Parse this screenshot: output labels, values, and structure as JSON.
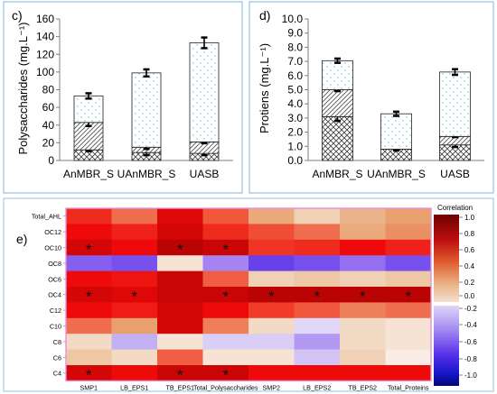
{
  "figure": {
    "colors": {
      "panel_border": "#8fc3df",
      "heatmap_border": "#e88ed8",
      "hatch_color": "#444444",
      "dot_color": "#5bbcd6"
    }
  },
  "chart_data": [
    {
      "panel": "c)",
      "type": "bar",
      "stacked": true,
      "categories": [
        "AnMBR_S",
        "UAnMBR_S",
        "UASB"
      ],
      "ylabel": "Polysaccharides (mg.L⁻¹)",
      "ylim": [
        0,
        160
      ],
      "yticks": [
        "0",
        "20",
        "40",
        "60",
        "80",
        "100",
        "120",
        "140",
        "160"
      ],
      "segment_patterns": [
        "crosshatch",
        "diagonal",
        "dots"
      ],
      "series": [
        {
          "values": [
            12,
            9,
            8
          ],
          "errors": [
            1.5,
            3,
            2
          ]
        },
        {
          "values": [
            31,
            6,
            13
          ],
          "errors": [
            4,
            2,
            1.5
          ]
        },
        {
          "values": [
            30,
            84,
            112
          ],
          "errors": [
            3,
            4,
            6
          ]
        }
      ],
      "totals": [
        73,
        99,
        133
      ]
    },
    {
      "panel": "d)",
      "type": "bar",
      "stacked": true,
      "categories": [
        "AnMBR_S",
        "UAnMBR_S",
        "UASB"
      ],
      "ylabel": "Protiens (mg.L⁻¹)",
      "ylim": [
        0,
        10
      ],
      "yticks": [
        "0.0",
        "1.0",
        "2.0",
        "3.0",
        "4.0",
        "5.0",
        "6.0",
        "7.0",
        "8.0",
        "9.0",
        "10.0"
      ],
      "segment_patterns": [
        "crosshatch",
        "diagonal",
        "dots"
      ],
      "series": [
        {
          "values": [
            3.1,
            0.8,
            1.1
          ],
          "errors": [
            0.3,
            0.1,
            0.15
          ]
        },
        {
          "values": [
            1.9,
            0,
            0.6
          ],
          "errors": [
            0.1,
            0,
            0.05
          ]
        },
        {
          "values": [
            2.05,
            2.5,
            4.55
          ],
          "errors": [
            0.15,
            0.15,
            0.2
          ]
        }
      ],
      "totals": [
        7.05,
        3.3,
        6.25
      ]
    },
    {
      "panel": "e)",
      "type": "heatmap",
      "legend_title": "Correlation",
      "legend_ticks": [
        "1.0",
        "0.8",
        "0.6",
        "0.4",
        "0.2",
        "0.0",
        "-0.2",
        "-0.4",
        "-0.6",
        "-0.8",
        "-1.0"
      ],
      "rows": [
        "Total_AHL",
        "OC12",
        "OC10",
        "OC8",
        "OC6",
        "OC4",
        "C12",
        "C10",
        "C8",
        "C6",
        "C4"
      ],
      "columns": [
        "SMP1",
        "LB_EPS1",
        "TB_EPS1",
        "Total_Polysaccharides",
        "SMP2",
        "LB_EPS2",
        "TB_EPS2",
        "Total_Proteins"
      ],
      "values": [
        [
          0.75,
          0.55,
          0.88,
          0.62,
          0.35,
          0.15,
          0.3,
          0.4
        ],
        [
          0.85,
          0.78,
          0.9,
          0.75,
          0.65,
          0.55,
          0.35,
          0.45
        ],
        [
          0.9,
          0.85,
          0.95,
          0.92,
          0.72,
          0.75,
          0.85,
          0.78
        ],
        [
          -0.45,
          -0.5,
          0.05,
          -0.35,
          -0.55,
          -0.5,
          -0.4,
          -0.5
        ],
        [
          0.85,
          0.82,
          0.92,
          0.6,
          0.15,
          0.2,
          0.15,
          0.2
        ],
        [
          0.9,
          0.88,
          0.92,
          0.92,
          0.95,
          0.95,
          0.95,
          0.95
        ],
        [
          0.85,
          0.8,
          0.9,
          0.85,
          0.7,
          0.62,
          0.5,
          0.55
        ],
        [
          0.55,
          0.4,
          0.9,
          0.5,
          0.1,
          -0.1,
          0.1,
          0.05
        ],
        [
          0.1,
          -0.25,
          0.05,
          -0.15,
          -0.15,
          -0.3,
          0.1,
          0.05
        ],
        [
          0.2,
          0.1,
          0.6,
          0.05,
          0.05,
          -0.2,
          0.15,
          0.0
        ],
        [
          0.9,
          0.85,
          0.92,
          0.92,
          0.85,
          0.85,
          0.85,
          0.85
        ]
      ],
      "significant": [
        [
          2,
          0
        ],
        [
          2,
          2
        ],
        [
          2,
          3
        ],
        [
          5,
          0
        ],
        [
          5,
          1
        ],
        [
          5,
          3
        ],
        [
          5,
          4
        ],
        [
          5,
          5
        ],
        [
          5,
          6
        ],
        [
          5,
          7
        ],
        [
          10,
          0
        ],
        [
          10,
          2
        ],
        [
          10,
          3
        ]
      ],
      "star_symbol": "*"
    }
  ]
}
